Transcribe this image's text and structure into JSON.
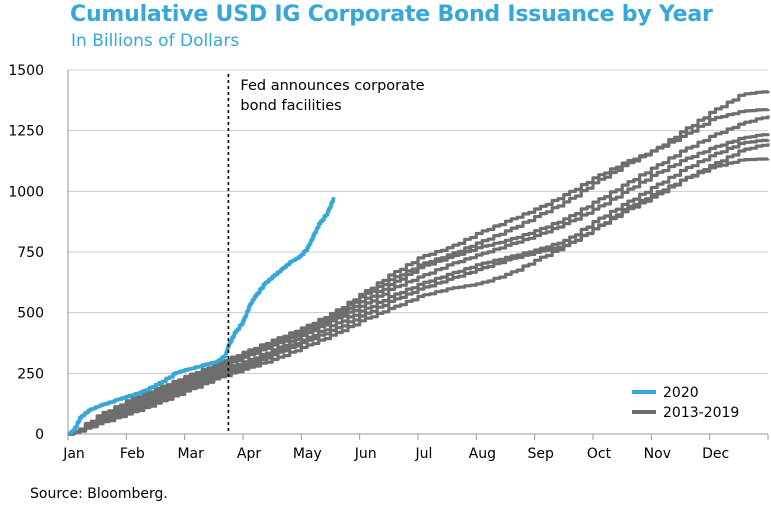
{
  "chart_data": {
    "type": "line",
    "title": "Cumulative USD IG Corporate Bond Issuance by Year",
    "subtitle": "In Billions of Dollars",
    "source": "Source: Bloomberg.",
    "xlabel": "",
    "ylabel": "",
    "x_ticks": [
      "Jan",
      "Feb",
      "Mar",
      "Apr",
      "May",
      "Jun",
      "Jul",
      "Aug",
      "Sep",
      "Oct",
      "Nov",
      "Dec"
    ],
    "y_ticks": [
      "0",
      "250",
      "500",
      "750",
      "1000",
      "1250",
      "1500"
    ],
    "ylim": [
      0,
      1500
    ],
    "xlim": [
      0,
      12
    ],
    "grid": "horizontal",
    "legend_position": "bottom-right",
    "annotation": {
      "text_line1": "Fed announces corporate",
      "text_line2": "bond facilities",
      "x": 2.75
    },
    "legend": {
      "highlight_label": "2020",
      "history_label": "2013-2019"
    },
    "colors": {
      "highlight": "#35a7d8",
      "history": "#6e6e6e",
      "grid": "#cccccc",
      "axis": "#9a9a9a"
    },
    "highlight_series": {
      "name": "2020",
      "x": [
        0,
        0.1,
        0.2,
        0.35,
        0.55,
        0.8,
        1.0,
        1.25,
        1.5,
        1.8,
        2.0,
        2.3,
        2.55,
        2.7,
        2.75,
        2.85,
        3.0,
        3.1,
        3.2,
        3.35,
        3.5,
        3.65,
        3.8,
        3.95,
        4.1,
        4.2,
        4.3,
        4.45,
        4.55
      ],
      "y": [
        0,
        20,
        70,
        100,
        120,
        140,
        155,
        175,
        205,
        250,
        265,
        285,
        300,
        330,
        370,
        420,
        470,
        530,
        570,
        620,
        650,
        680,
        710,
        730,
        770,
        820,
        870,
        920,
        980
      ]
    },
    "history_series": [
      {
        "x": [
          0,
          0.5,
          1,
          1.5,
          2,
          2.5,
          3,
          3.5,
          4,
          4.5,
          5,
          5.5,
          6,
          6.5,
          7,
          7.5,
          8,
          8.5,
          9,
          9.5,
          10,
          10.5,
          11,
          11.5,
          12
        ],
        "y": [
          0,
          80,
          140,
          190,
          240,
          290,
          340,
          390,
          440,
          500,
          580,
          660,
          730,
          770,
          830,
          880,
          930,
          990,
          1060,
          1120,
          1170,
          1250,
          1330,
          1400,
          1415
        ]
      },
      {
        "x": [
          0,
          0.5,
          1,
          1.5,
          2,
          2.5,
          3,
          3.5,
          4,
          4.5,
          5,
          5.5,
          6,
          6.5,
          7,
          7.5,
          8,
          8.5,
          9,
          9.5,
          10,
          10.5,
          11,
          11.5,
          12
        ],
        "y": [
          0,
          70,
          130,
          180,
          230,
          280,
          330,
          380,
          430,
          490,
          570,
          640,
          700,
          740,
          790,
          840,
          900,
          960,
          1040,
          1110,
          1170,
          1230,
          1300,
          1330,
          1340
        ]
      },
      {
        "x": [
          0,
          0.5,
          1,
          1.5,
          2,
          2.5,
          3,
          3.5,
          4,
          4.5,
          5,
          5.5,
          6,
          6.5,
          7,
          7.5,
          8,
          8.5,
          9,
          9.5,
          10,
          10.5,
          11,
          11.5,
          12
        ],
        "y": [
          0,
          60,
          120,
          170,
          220,
          270,
          320,
          370,
          420,
          480,
          550,
          620,
          690,
          730,
          770,
          800,
          840,
          890,
          960,
          1030,
          1100,
          1170,
          1230,
          1280,
          1315
        ]
      },
      {
        "x": [
          0,
          0.5,
          1,
          1.5,
          2,
          2.5,
          3,
          3.5,
          4,
          4.5,
          5,
          5.5,
          6,
          6.5,
          7,
          7.5,
          8,
          8.5,
          9,
          9.5,
          10,
          10.5,
          11,
          11.5,
          12
        ],
        "y": [
          0,
          65,
          110,
          160,
          210,
          260,
          300,
          350,
          410,
          470,
          530,
          600,
          650,
          700,
          740,
          780,
          820,
          870,
          930,
          1000,
          1070,
          1130,
          1180,
          1220,
          1240
        ]
      },
      {
        "x": [
          0,
          0.5,
          1,
          1.5,
          2,
          2.5,
          3,
          3.5,
          4,
          4.5,
          5,
          5.5,
          6,
          6.5,
          7,
          7.5,
          8,
          8.5,
          9,
          9.5,
          10,
          10.5,
          11,
          11.5,
          12
        ],
        "y": [
          0,
          55,
          100,
          150,
          200,
          250,
          290,
          340,
          390,
          450,
          510,
          570,
          620,
          660,
          700,
          730,
          760,
          800,
          880,
          950,
          1020,
          1090,
          1150,
          1200,
          1215
        ]
      },
      {
        "x": [
          0,
          0.5,
          1,
          1.5,
          2,
          2.5,
          3,
          3.5,
          4,
          4.5,
          5,
          5.5,
          6,
          6.5,
          7,
          7.5,
          8,
          8.5,
          9,
          9.5,
          10,
          10.5,
          11,
          11.5,
          12
        ],
        "y": [
          0,
          50,
          95,
          140,
          190,
          240,
          280,
          330,
          380,
          430,
          490,
          550,
          600,
          640,
          680,
          720,
          750,
          780,
          850,
          920,
          980,
          1050,
          1110,
          1170,
          1200
        ]
      },
      {
        "x": [
          0,
          0.5,
          1,
          1.5,
          2,
          2.5,
          3,
          3.5,
          4,
          4.5,
          5,
          5.5,
          6,
          6.5,
          7,
          7.5,
          8,
          8.5,
          9,
          9.5,
          10,
          10.5,
          11,
          11.5,
          12
        ],
        "y": [
          0,
          45,
          85,
          130,
          180,
          230,
          270,
          310,
          360,
          410,
          470,
          520,
          570,
          600,
          620,
          660,
          720,
          780,
          850,
          930,
          990,
          1050,
          1100,
          1130,
          1135
        ]
      }
    ]
  }
}
